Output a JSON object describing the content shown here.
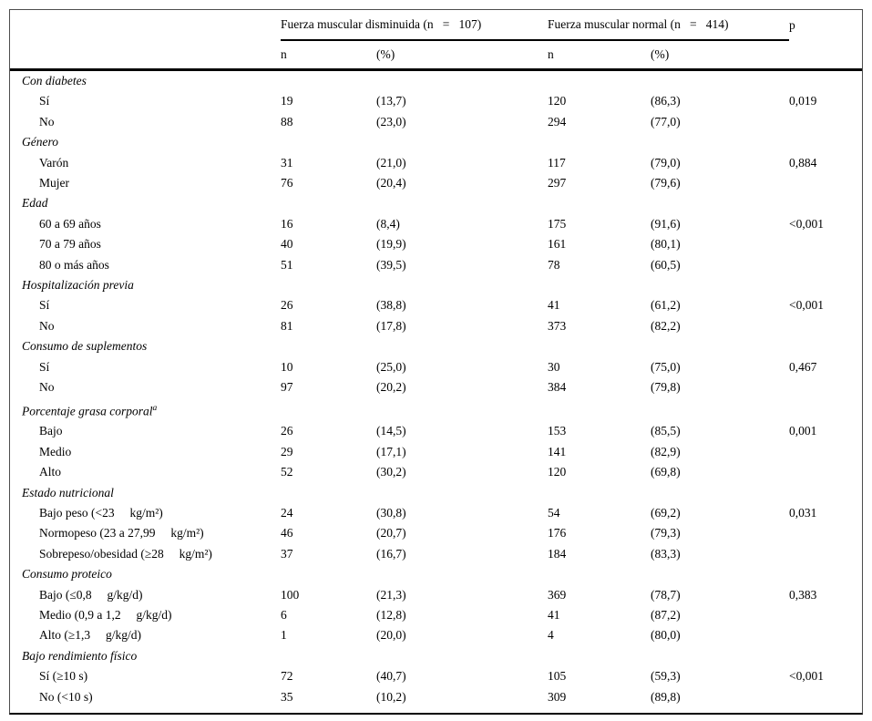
{
  "colors": {
    "text": "#000000",
    "rule": "#000000",
    "outer_border": "#4d4d4d",
    "background": "#ffffff"
  },
  "table": {
    "header": {
      "group1_label": "Fuerza muscular disminuida (n   =   107)",
      "group2_label": "Fuerza muscular normal (n   =   414)",
      "p_label": "p",
      "sub_cols": [
        "n",
        "(%)",
        "n",
        "(%)"
      ]
    },
    "sections": [
      {
        "label": "Con diabetes",
        "rows": [
          {
            "label": "Sí",
            "n1": "19",
            "pct1": "(13,7)",
            "n2": "120",
            "pct2": "(86,3)",
            "p": "0,019"
          },
          {
            "label": "No",
            "n1": "88",
            "pct1": "(23,0)",
            "n2": "294",
            "pct2": "(77,0)",
            "p": ""
          }
        ]
      },
      {
        "label": "Género",
        "rows": [
          {
            "label": "Varón",
            "n1": "31",
            "pct1": "(21,0)",
            "n2": "117",
            "pct2": "(79,0)",
            "p": "0,884"
          },
          {
            "label": "Mujer",
            "n1": "76",
            "pct1": "(20,4)",
            "n2": "297",
            "pct2": "(79,6)",
            "p": ""
          }
        ]
      },
      {
        "label": "Edad",
        "rows": [
          {
            "label": "60 a 69 años",
            "n1": "16",
            "pct1": "(8,4)",
            "n2": "175",
            "pct2": "(91,6)",
            "p": "<0,001"
          },
          {
            "label": "70 a 79 años",
            "n1": "40",
            "pct1": "(19,9)",
            "n2": "161",
            "pct2": "(80,1)",
            "p": ""
          },
          {
            "label": "80 o más años",
            "n1": "51",
            "pct1": "(39,5)",
            "n2": "78",
            "pct2": "(60,5)",
            "p": ""
          }
        ]
      },
      {
        "label": "Hospitalización previa",
        "rows": [
          {
            "label": "Sí",
            "n1": "26",
            "pct1": "(38,8)",
            "n2": "41",
            "pct2": "(61,2)",
            "p": "<0,001"
          },
          {
            "label": "No",
            "n1": "81",
            "pct1": "(17,8)",
            "n2": "373",
            "pct2": "(82,2)",
            "p": ""
          }
        ]
      },
      {
        "label": "Consumo de suplementos",
        "rows": [
          {
            "label": "Sí",
            "n1": "10",
            "pct1": "(25,0)",
            "n2": "30",
            "pct2": "(75,0)",
            "p": "0,467"
          },
          {
            "label": "No",
            "n1": "97",
            "pct1": "(20,2)",
            "n2": "384",
            "pct2": "(79,8)",
            "p": ""
          }
        ]
      },
      {
        "label": "Porcentaje grasa corporal",
        "sup": "a",
        "rows": [
          {
            "label": "Bajo",
            "n1": "26",
            "pct1": "(14,5)",
            "n2": "153",
            "pct2": "(85,5)",
            "p": "0,001"
          },
          {
            "label": "Medio",
            "n1": "29",
            "pct1": "(17,1)",
            "n2": "141",
            "pct2": "(82,9)",
            "p": ""
          },
          {
            "label": "Alto",
            "n1": "52",
            "pct1": "(30,2)",
            "n2": "120",
            "pct2": "(69,8)",
            "p": ""
          }
        ]
      },
      {
        "label": "Estado nutricional",
        "rows": [
          {
            "label": "Bajo peso (<23     kg/m²)",
            "n1": "24",
            "pct1": "(30,8)",
            "n2": "54",
            "pct2": "(69,2)",
            "p": "0,031"
          },
          {
            "label": "Normopeso (23 a 27,99     kg/m²)",
            "n1": "46",
            "pct1": "(20,7)",
            "n2": "176",
            "pct2": "(79,3)",
            "p": ""
          },
          {
            "label": "Sobrepeso/obesidad (≥28     kg/m²)",
            "n1": "37",
            "pct1": "(16,7)",
            "n2": "184",
            "pct2": "(83,3)",
            "p": ""
          }
        ]
      },
      {
        "label": "Consumo proteico",
        "rows": [
          {
            "label": "Bajo (≤0,8     g/kg/d)",
            "n1": "100",
            "pct1": "(21,3)",
            "n2": "369",
            "pct2": "(78,7)",
            "p": "0,383"
          },
          {
            "label": "Medio (0,9 a 1,2     g/kg/d)",
            "n1": "6",
            "pct1": "(12,8)",
            "n2": "41",
            "pct2": "(87,2)",
            "p": ""
          },
          {
            "label": "Alto (≥1,3     g/kg/d)",
            "n1": "1",
            "pct1": "(20,0)",
            "n2": "4",
            "pct2": "(80,0)",
            "p": ""
          }
        ]
      },
      {
        "label": "Bajo rendimiento físico",
        "rows": [
          {
            "label": "Sí (≥10 s)",
            "n1": "72",
            "pct1": "(40,7)",
            "n2": "105",
            "pct2": "(59,3)",
            "p": "<0,001"
          },
          {
            "label": "No (<10 s)",
            "n1": "35",
            "pct1": "(10,2)",
            "n2": "309",
            "pct2": "(89,8)",
            "p": ""
          }
        ]
      }
    ]
  }
}
